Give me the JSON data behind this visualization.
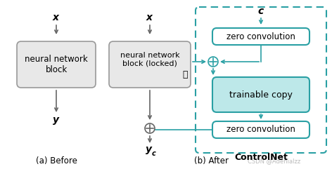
{
  "fig_width": 4.72,
  "fig_height": 2.41,
  "dpi": 100,
  "bg_color": "#ffffff",
  "teal": "#2AA0A4",
  "teal_fill": "#BDE8E9",
  "gray_fill": "#E8E8E8",
  "gray_border": "#999999",
  "arrow_color": "#666666",
  "caption_left": "(a) Before",
  "caption_right": "(b) After",
  "watermark": "CSDN @Adenialzz",
  "box1_text": "neural network\nblock",
  "box2_text": "neural network\nblock (locked)",
  "box3_text": "zero convolution",
  "box4_text": "trainable copy",
  "box5_text": "zero convolution",
  "controlnet_label": "ControlNet"
}
